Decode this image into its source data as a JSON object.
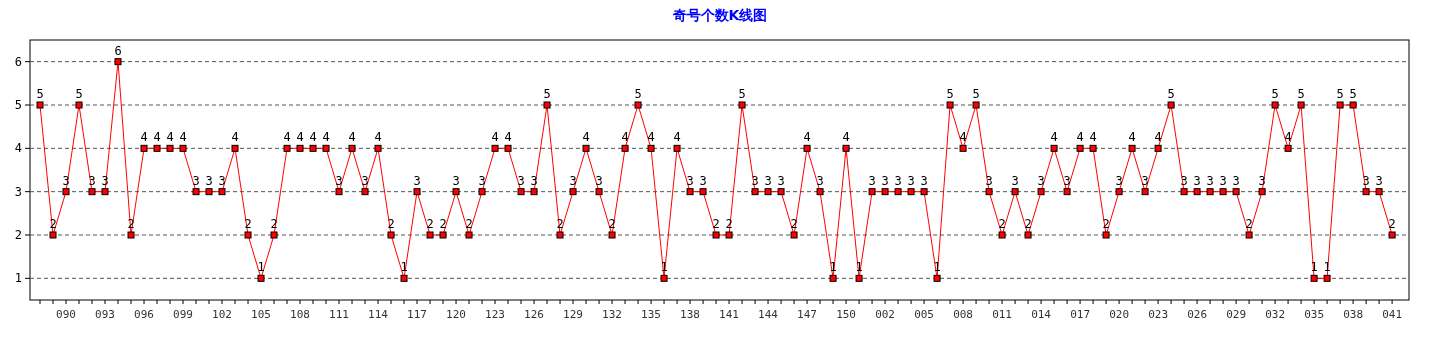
{
  "chart_data": {
    "type": "line",
    "title": "奇号个数K线图",
    "categories": [
      null,
      null,
      "090",
      null,
      null,
      "093",
      null,
      null,
      "096",
      null,
      null,
      "099",
      null,
      null,
      "102",
      null,
      null,
      "105",
      null,
      null,
      "108",
      null,
      null,
      "111",
      null,
      null,
      "114",
      null,
      null,
      "117",
      null,
      null,
      "120",
      null,
      null,
      "123",
      null,
      null,
      "126",
      null,
      null,
      "129",
      null,
      null,
      "132",
      null,
      null,
      "135",
      null,
      null,
      "138",
      null,
      null,
      "141",
      null,
      null,
      "144",
      null,
      null,
      "147",
      null,
      null,
      "150",
      null,
      null,
      "002",
      null,
      null,
      "005",
      null,
      null,
      "008",
      null,
      null,
      "011",
      null,
      null,
      "014",
      null,
      null,
      "017",
      null,
      null,
      "020",
      null,
      null,
      "023",
      null,
      null,
      "026",
      null,
      null,
      "029",
      null,
      null,
      "032",
      null,
      null,
      "035",
      null,
      null,
      "038",
      null,
      null,
      "041"
    ],
    "series": [
      {
        "color": "#ff0000",
        "values": [
          5,
          2,
          3,
          5,
          3,
          3,
          6,
          2,
          4,
          4,
          4,
          4,
          3,
          3,
          3,
          4,
          2,
          1,
          2,
          4,
          4,
          4,
          4,
          3,
          4,
          3,
          4,
          2,
          1,
          3,
          2,
          2,
          3,
          2,
          3,
          4,
          4,
          3,
          3,
          5,
          2,
          3,
          4,
          3,
          2,
          4,
          5,
          4,
          1,
          4,
          3,
          3,
          2,
          2,
          5,
          3,
          3,
          3,
          2,
          4,
          3,
          1,
          4,
          1,
          3,
          3,
          3,
          3,
          3,
          1,
          5,
          4,
          5,
          3,
          2,
          3,
          2,
          3,
          4,
          3,
          4,
          4,
          2,
          3,
          4,
          3,
          4,
          5,
          3,
          3,
          3,
          3,
          3,
          2,
          3,
          5,
          4,
          5,
          1,
          1,
          5,
          5,
          3,
          3,
          2
        ]
      }
    ],
    "ylim": [
      0.5,
      6.5
    ],
    "yticks": [
      1,
      2,
      3,
      4,
      5,
      6
    ],
    "grid": "y",
    "marker": "square",
    "data_labels": true
  }
}
